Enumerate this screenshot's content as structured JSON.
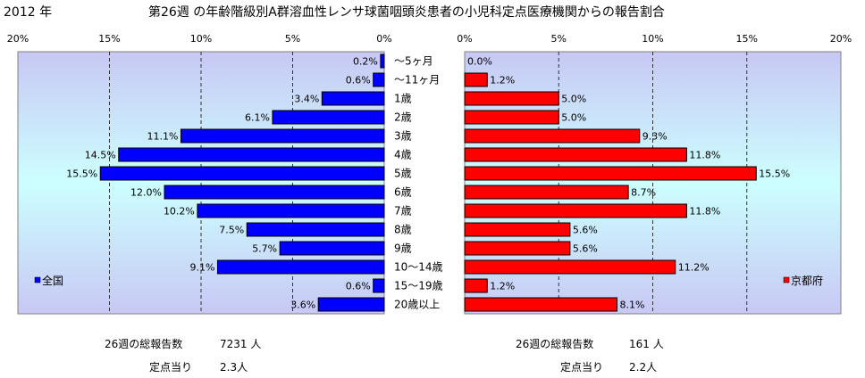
{
  "header": {
    "year": "2012 年",
    "title": "第26週 の年齢階級別A群溶血性レンサ球菌咽頭炎患者の小児科定点医療機関からの報告割合"
  },
  "colors": {
    "left_bar": "#0000ff",
    "right_bar": "#ff0000",
    "plot_top": "#c8c8f4",
    "plot_mid": "#ccffff",
    "plot_bottom": "#c8c8f4"
  },
  "chart_data": [
    {
      "type": "bar",
      "orientation": "horizontal",
      "direction": "right-to-left",
      "legend": "全国",
      "legend_position": "bottom-left",
      "xlim": [
        0,
        20
      ],
      "ticks": [
        "0%",
        "5%",
        "10%",
        "15%",
        "20%"
      ],
      "grid": true,
      "categories": [
        "～5ヶ月",
        "～11ヶ月",
        "1歳",
        "2歳",
        "3歳",
        "4歳",
        "5歳",
        "6歳",
        "7歳",
        "8歳",
        "9歳",
        "10～14歳",
        "15～19歳",
        "20歳以上"
      ],
      "values": [
        0.2,
        0.6,
        3.4,
        6.1,
        11.1,
        14.5,
        15.5,
        12.0,
        10.2,
        7.5,
        5.7,
        9.1,
        0.6,
        3.6
      ],
      "labels": [
        "0.2%",
        "0.6%",
        "3.4%",
        "6.1%",
        "11.1%",
        "14.5%",
        "15.5%",
        "12.0%",
        "10.2%",
        "7.5%",
        "5.7%",
        "9.1%",
        "0.6%",
        "3.6%"
      ]
    },
    {
      "type": "bar",
      "orientation": "horizontal",
      "direction": "left-to-right",
      "legend": "京都府",
      "legend_position": "bottom-right",
      "xlim": [
        0,
        20
      ],
      "ticks": [
        "0%",
        "5%",
        "10%",
        "15%",
        "20%"
      ],
      "grid": true,
      "categories": [
        "～5ヶ月",
        "～11ヶ月",
        "1歳",
        "2歳",
        "3歳",
        "4歳",
        "5歳",
        "6歳",
        "7歳",
        "8歳",
        "9歳",
        "10～14歳",
        "15～19歳",
        "20歳以上"
      ],
      "values": [
        0.0,
        1.2,
        5.0,
        5.0,
        9.3,
        11.8,
        15.5,
        8.7,
        11.8,
        5.6,
        5.6,
        11.2,
        1.2,
        8.1
      ],
      "labels": [
        "0.0%",
        "1.2%",
        "5.0%",
        "5.0%",
        "9.3%",
        "11.8%",
        "15.5%",
        "8.7%",
        "11.8%",
        "5.6%",
        "5.6%",
        "11.2%",
        "1.2%",
        "8.1%"
      ]
    }
  ],
  "footer": {
    "left": {
      "total_label": "26週の総報告数",
      "total_value": "7231 人",
      "per_label": "定点当り",
      "per_value": "2.3人"
    },
    "right": {
      "total_label": "26週の総報告数",
      "total_value": "161 人",
      "per_label": "定点当り",
      "per_value": "2.2人"
    }
  }
}
